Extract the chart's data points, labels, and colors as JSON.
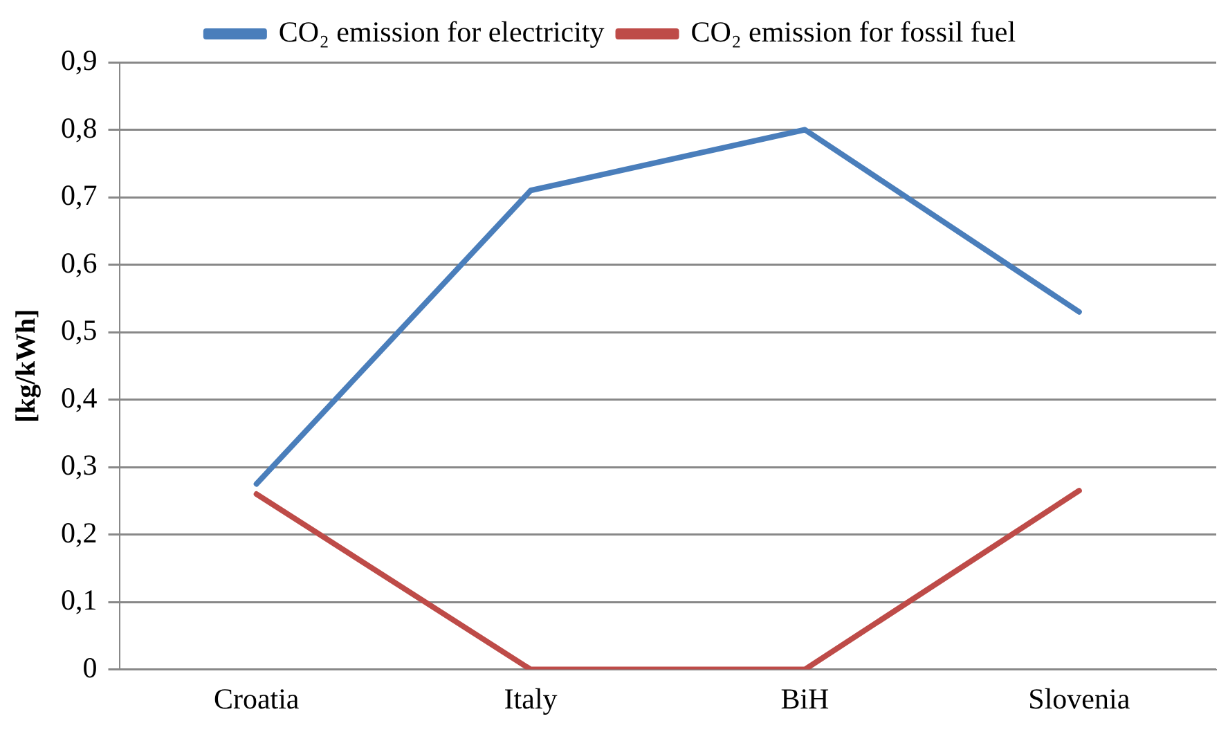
{
  "chart_data": {
    "type": "line",
    "ylabel": "[kg/kWh]",
    "categories": [
      "Croatia",
      "Italy",
      "BiH",
      "Slovenia"
    ],
    "series": [
      {
        "name": "CO₂ emission for electricity",
        "color": "#4a7ebb",
        "values": [
          0.275,
          0.71,
          0.8,
          0.53
        ]
      },
      {
        "name": "CO₂ emission for fossil fuel",
        "color": "#be4b48",
        "values": [
          0.26,
          0,
          0,
          0.265
        ]
      }
    ],
    "ylim": [
      0,
      0.9
    ],
    "yticks": [
      0,
      {
        "value": 0.1,
        "label": "0,1"
      },
      {
        "value": 0.2,
        "label": "0,2"
      },
      {
        "value": 0.3,
        "label": "0,3"
      },
      {
        "value": 0.4,
        "label": "0,4"
      },
      {
        "value": 0.5,
        "label": "0,5"
      },
      {
        "value": 0.6,
        "label": "0,6"
      },
      {
        "value": 0.7,
        "label": "0,7"
      },
      {
        "value": 0.8,
        "label": "0,8"
      },
      {
        "value": 0.9,
        "label": "0,9"
      }
    ],
    "grid": "y",
    "legend": "top",
    "marker": "none",
    "line_style": "solid"
  }
}
